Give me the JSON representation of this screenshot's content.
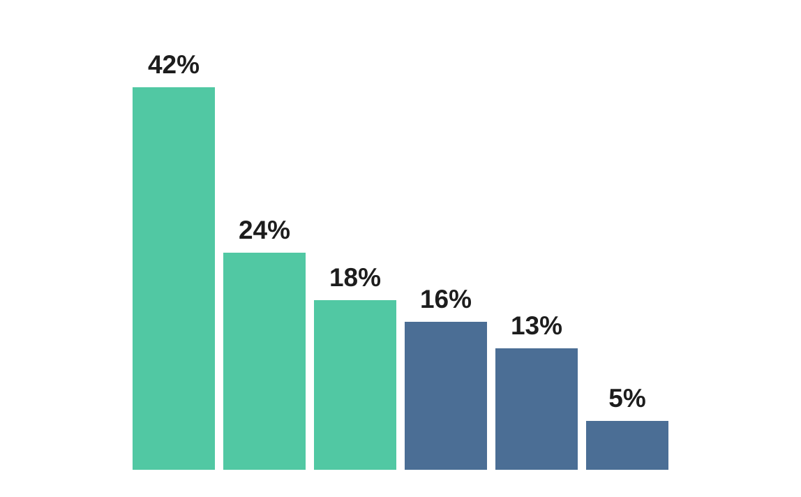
{
  "page": {
    "background_color": "#FFFFFF"
  },
  "chart_data": {
    "type": "bar",
    "title": "",
    "xlabel": "",
    "ylabel": "",
    "categories": [],
    "values": [
      42,
      24,
      18,
      16,
      13,
      5
    ],
    "labels": [
      "42%",
      "24%",
      "18%",
      "16%",
      "13%",
      "5%"
    ],
    "bar_colors": [
      "#51C8A3",
      "#51C8A3",
      "#51C8A3",
      "#4B6E95",
      "#4B6E95",
      "#4B6E95"
    ],
    "label_color": "#1D1D1D",
    "green_color": "#51C8A3",
    "blue_color": "#4B6E95",
    "grid": false,
    "axes_visible": false,
    "legend_position": "none",
    "data_labels_position": "above-bars"
  }
}
